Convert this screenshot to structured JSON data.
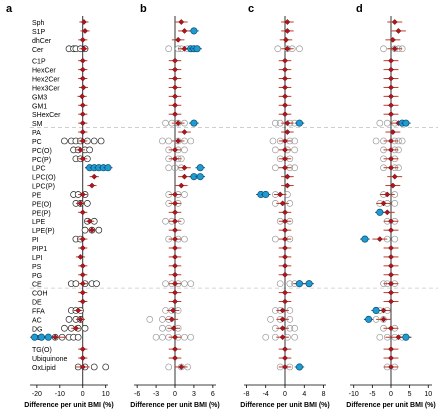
{
  "figure": {
    "background": "#ffffff",
    "separator_color": "#c8c8c8",
    "colors": {
      "significant_fill": "#1f9bd1",
      "significant_stroke": "#0b4f73",
      "class_marker": "#b3141b",
      "class_marker_stroke": "#5a0c10",
      "ci_line": "#c0392b",
      "species_open": "#9a9a9a",
      "zero_line": "#000000"
    },
    "class_labels": [
      "Sph",
      "S1P",
      "dhCer",
      "Cer",
      "C1P",
      "HexCer",
      "Hex2Cer",
      "Hex3Cer",
      "GM3",
      "GM1",
      "SHexCer",
      "SM",
      "PA",
      "PC",
      "PC(O)",
      "PC(P)",
      "LPC",
      "LPC(O)",
      "LPC(P)",
      "PE",
      "PE(O)",
      "PE(P)",
      "LPE",
      "LPE(P)",
      "PI",
      "PIP1",
      "LPI",
      "PS",
      "PG",
      "CE",
      "COH",
      "DE",
      "FFA",
      "AC",
      "DG",
      "TG",
      "TG(O)",
      "Ubiquinone",
      "OxLipid"
    ]
  },
  "chart_data": [
    {
      "type": "scatter",
      "panel_label": "a",
      "xlabel": "Difference per unit BMI (%)",
      "xlim": [
        -23,
        11
      ],
      "xticks": [
        -20,
        -10,
        0,
        10
      ],
      "grid": false,
      "class_estimates": [
        0.5,
        1,
        0,
        0.5,
        0,
        0,
        0,
        0.3,
        -0.3,
        0,
        0,
        0,
        0,
        0,
        -1,
        0,
        3,
        5,
        4,
        0,
        -1,
        0,
        3,
        4,
        0,
        0,
        -1,
        0,
        0,
        0,
        0,
        0,
        -2,
        -1,
        -3,
        -12,
        0,
        0,
        0
      ],
      "ci_halfwidth": [
        2,
        2,
        2,
        2,
        2,
        2,
        2,
        2,
        2,
        2,
        2,
        2,
        2,
        2,
        2,
        2,
        2,
        2,
        2,
        2,
        2,
        2,
        2,
        2,
        2,
        2,
        2,
        2,
        2,
        2,
        2,
        2,
        2,
        2,
        2,
        5,
        2,
        2,
        3
      ],
      "species_open_color": "#ffffff",
      "species_open_stroke": "#222222",
      "species": [
        {
          "row": 3,
          "x": [
            -6,
            -4,
            -3,
            -1,
            1
          ]
        },
        {
          "row": 13,
          "x": [
            -8,
            -5,
            -3,
            -1,
            2,
            5,
            8
          ]
        },
        {
          "row": 14,
          "x": [
            -4,
            -2,
            1,
            3
          ]
        },
        {
          "row": 15,
          "x": [
            -3,
            -1,
            2
          ]
        },
        {
          "row": 19,
          "x": [
            -4,
            -2,
            1
          ]
        },
        {
          "row": 20,
          "x": [
            -3,
            -1,
            2
          ]
        },
        {
          "row": 22,
          "x": [
            2,
            5
          ]
        },
        {
          "row": 23,
          "x": [
            1,
            4,
            7
          ]
        },
        {
          "row": 24,
          "x": [
            -3,
            -1
          ]
        },
        {
          "row": 29,
          "x": [
            -5,
            -3,
            1,
            4,
            6
          ]
        },
        {
          "row": 32,
          "x": [
            -5,
            -3,
            -1
          ]
        },
        {
          "row": 33,
          "x": [
            -6,
            -3,
            -1
          ]
        },
        {
          "row": 34,
          "x": [
            -8,
            -5,
            -2,
            1
          ]
        },
        {
          "row": 35,
          "x": [
            -18,
            -15,
            -12,
            -9,
            -6,
            -4,
            -2
          ]
        },
        {
          "row": 38,
          "x": [
            -2,
            1,
            5,
            10
          ]
        }
      ],
      "significant": [
        {
          "row": 16,
          "x": [
            3,
            5,
            7,
            9,
            11
          ]
        },
        {
          "row": 35,
          "x": [
            -21,
            -18,
            -15
          ]
        }
      ]
    },
    {
      "type": "scatter",
      "panel_label": "b",
      "xlabel": "Difference per unit BMI (%)",
      "xlim": [
        -6.5,
        6.5
      ],
      "xticks": [
        -6,
        -3,
        0,
        3,
        6
      ],
      "grid": false,
      "class_estimates": [
        1,
        1.5,
        0.5,
        1.5,
        0,
        0,
        0,
        0,
        0,
        0,
        0,
        0.5,
        1.5,
        0.5,
        0,
        0,
        1.5,
        1.5,
        1,
        0,
        0,
        0,
        0,
        0,
        0,
        0,
        0,
        0,
        0,
        0,
        0,
        0,
        -0.3,
        -0.5,
        -0.2,
        0,
        0,
        0,
        1
      ],
      "ci_halfwidth": [
        1,
        1,
        1,
        1,
        1,
        1,
        1,
        1,
        1,
        1,
        1,
        1,
        1,
        1,
        1,
        1,
        1,
        1,
        1,
        1,
        1,
        1,
        1,
        1,
        1,
        1,
        1,
        1,
        1,
        1,
        1,
        1,
        1,
        1,
        1,
        1,
        1,
        1,
        1
      ],
      "species": [
        {
          "row": 3,
          "x": [
            -1,
            0.5,
            1,
            2
          ]
        },
        {
          "row": 11,
          "x": [
            -1.5,
            -0.5,
            0.5,
            1.5,
            3
          ]
        },
        {
          "row": 13,
          "x": [
            -2,
            -1,
            0.5,
            1.5,
            2.5
          ]
        },
        {
          "row": 14,
          "x": [
            -1,
            0.5,
            1.5
          ]
        },
        {
          "row": 15,
          "x": [
            -1,
            0.5,
            1
          ]
        },
        {
          "row": 16,
          "x": [
            -1,
            0,
            1
          ]
        },
        {
          "row": 19,
          "x": [
            -1,
            0.5,
            1.5
          ]
        },
        {
          "row": 20,
          "x": [
            -1,
            0.5
          ]
        },
        {
          "row": 22,
          "x": [
            -1.5,
            -0.5,
            1
          ]
        },
        {
          "row": 24,
          "x": [
            -1,
            0.5,
            1.5
          ]
        },
        {
          "row": 29,
          "x": [
            -1.5,
            -0.5,
            0.5,
            1.5,
            2.5
          ]
        },
        {
          "row": 32,
          "x": [
            -1.5,
            -0.5,
            0.5
          ]
        },
        {
          "row": 33,
          "x": [
            -4,
            -2,
            -1
          ]
        },
        {
          "row": 34,
          "x": [
            -2,
            -1,
            0.5
          ]
        },
        {
          "row": 35,
          "x": [
            -3,
            -2,
            -1,
            0.5,
            1.5,
            2.5
          ]
        },
        {
          "row": 38,
          "x": [
            -1,
            1,
            2
          ]
        }
      ],
      "significant": [
        {
          "row": 1,
          "x": [
            3
          ]
        },
        {
          "row": 3,
          "x": [
            2.5,
            3,
            3.5
          ]
        },
        {
          "row": 11,
          "x": [
            3
          ]
        },
        {
          "row": 16,
          "x": [
            4
          ]
        },
        {
          "row": 17,
          "x": [
            3,
            4
          ]
        }
      ]
    },
    {
      "type": "scatter",
      "panel_label": "c",
      "xlabel": "Difference per unit BMI (%)",
      "xlim": [
        -8.5,
        8.5
      ],
      "xticks": [
        -8,
        -4,
        0,
        4,
        8
      ],
      "grid": false,
      "class_estimates": [
        0.5,
        0.5,
        0.2,
        0.5,
        0,
        0,
        0,
        0,
        0,
        0,
        0,
        0.5,
        0.5,
        0,
        0,
        0,
        0,
        0.5,
        0.5,
        -1,
        -0.5,
        0,
        0,
        0,
        0,
        0,
        0,
        0,
        0,
        3,
        0,
        0,
        -0.5,
        -0.5,
        -0.5,
        -0.5,
        0,
        0,
        0
      ],
      "ci_halfwidth": [
        1.3,
        1.3,
        1.3,
        1.3,
        1.3,
        1.3,
        1.3,
        1.3,
        1.3,
        1.3,
        1.3,
        1.3,
        1.3,
        1.3,
        1.3,
        1.3,
        1.3,
        1.3,
        1.3,
        1.3,
        1.3,
        1.3,
        1.3,
        1.3,
        1.3,
        1.3,
        1.3,
        1.3,
        1.3,
        1.3,
        1.3,
        1.3,
        1.3,
        1.3,
        1.3,
        1.3,
        1.3,
        1.3,
        1.3
      ],
      "species": [
        {
          "row": 3,
          "x": [
            -1.5,
            0.5,
            1.5,
            3
          ]
        },
        {
          "row": 11,
          "x": [
            -2,
            -1,
            1,
            2
          ]
        },
        {
          "row": 13,
          "x": [
            -2.5,
            -1,
            1,
            2
          ]
        },
        {
          "row": 14,
          "x": [
            -2,
            0.5,
            2
          ]
        },
        {
          "row": 15,
          "x": [
            -1,
            1
          ]
        },
        {
          "row": 16,
          "x": [
            -2,
            1,
            2
          ]
        },
        {
          "row": 19,
          "x": [
            -2,
            0.5
          ]
        },
        {
          "row": 20,
          "x": [
            -2,
            1
          ]
        },
        {
          "row": 22,
          "x": [
            -1,
            1
          ]
        },
        {
          "row": 24,
          "x": [
            -2,
            1
          ]
        },
        {
          "row": 29,
          "x": [
            -1,
            1,
            2
          ]
        },
        {
          "row": 32,
          "x": [
            -2,
            -1,
            1
          ]
        },
        {
          "row": 33,
          "x": [
            -3,
            -1,
            1
          ]
        },
        {
          "row": 34,
          "x": [
            -2,
            1,
            2
          ]
        },
        {
          "row": 35,
          "x": [
            -4,
            -2,
            0.5,
            2
          ]
        },
        {
          "row": 38,
          "x": [
            -1,
            1
          ]
        }
      ],
      "significant": [
        {
          "row": 11,
          "x": [
            3
          ]
        },
        {
          "row": 19,
          "x": [
            -5,
            -4
          ]
        },
        {
          "row": 29,
          "x": [
            3,
            5
          ]
        },
        {
          "row": 38,
          "x": [
            3
          ]
        }
      ]
    },
    {
      "type": "scatter",
      "panel_label": "d",
      "xlabel": "Difference per unit BMI (%)",
      "xlim": [
        -11,
        11
      ],
      "xticks": [
        -10,
        -5,
        0,
        5,
        10
      ],
      "grid": false,
      "class_estimates": [
        1,
        2,
        0.5,
        1,
        0,
        0,
        0,
        0,
        0,
        0,
        0,
        2,
        0.5,
        0,
        0,
        0,
        0,
        1,
        0.5,
        -1,
        -2,
        -1,
        0,
        0,
        -3,
        0,
        0,
        0,
        0,
        0,
        0,
        0,
        -2,
        -2,
        0,
        2,
        0,
        0,
        0
      ],
      "ci_halfwidth": [
        2,
        2,
        2,
        2,
        2,
        2,
        2,
        2,
        2,
        2,
        2,
        2,
        2,
        2,
        2,
        2,
        2,
        2,
        2,
        2,
        2,
        2,
        2,
        2,
        2,
        2,
        2,
        2,
        2,
        2,
        2,
        2,
        2,
        2,
        2,
        3.5,
        2,
        2,
        2
      ],
      "species": [
        {
          "row": 3,
          "x": [
            -2,
            1,
            2,
            3
          ]
        },
        {
          "row": 11,
          "x": [
            -3,
            -1,
            1,
            3
          ]
        },
        {
          "row": 13,
          "x": [
            -4,
            -2,
            1,
            2,
            3
          ]
        },
        {
          "row": 14,
          "x": [
            -2,
            1,
            2
          ]
        },
        {
          "row": 15,
          "x": [
            -2,
            1
          ]
        },
        {
          "row": 16,
          "x": [
            -2,
            1,
            2
          ]
        },
        {
          "row": 19,
          "x": [
            -2,
            1
          ]
        },
        {
          "row": 20,
          "x": [
            -3,
            -1,
            1
          ]
        },
        {
          "row": 22,
          "x": [
            -1,
            1
          ]
        },
        {
          "row": 24,
          "x": [
            -1,
            1
          ]
        },
        {
          "row": 29,
          "x": [
            -2,
            -1,
            1
          ]
        },
        {
          "row": 32,
          "x": [
            -3,
            -1
          ]
        },
        {
          "row": 33,
          "x": [
            -4,
            -2
          ]
        },
        {
          "row": 34,
          "x": [
            -2,
            1
          ]
        },
        {
          "row": 35,
          "x": [
            -3,
            -1,
            1,
            3
          ]
        },
        {
          "row": 38,
          "x": [
            -1,
            1
          ]
        }
      ],
      "significant": [
        {
          "row": 11,
          "x": [
            3,
            4
          ]
        },
        {
          "row": 21,
          "x": [
            -3
          ]
        },
        {
          "row": 24,
          "x": [
            -7
          ]
        },
        {
          "row": 32,
          "x": [
            -4
          ]
        },
        {
          "row": 33,
          "x": [
            -6
          ]
        },
        {
          "row": 35,
          "x": [
            4
          ]
        }
      ]
    }
  ]
}
